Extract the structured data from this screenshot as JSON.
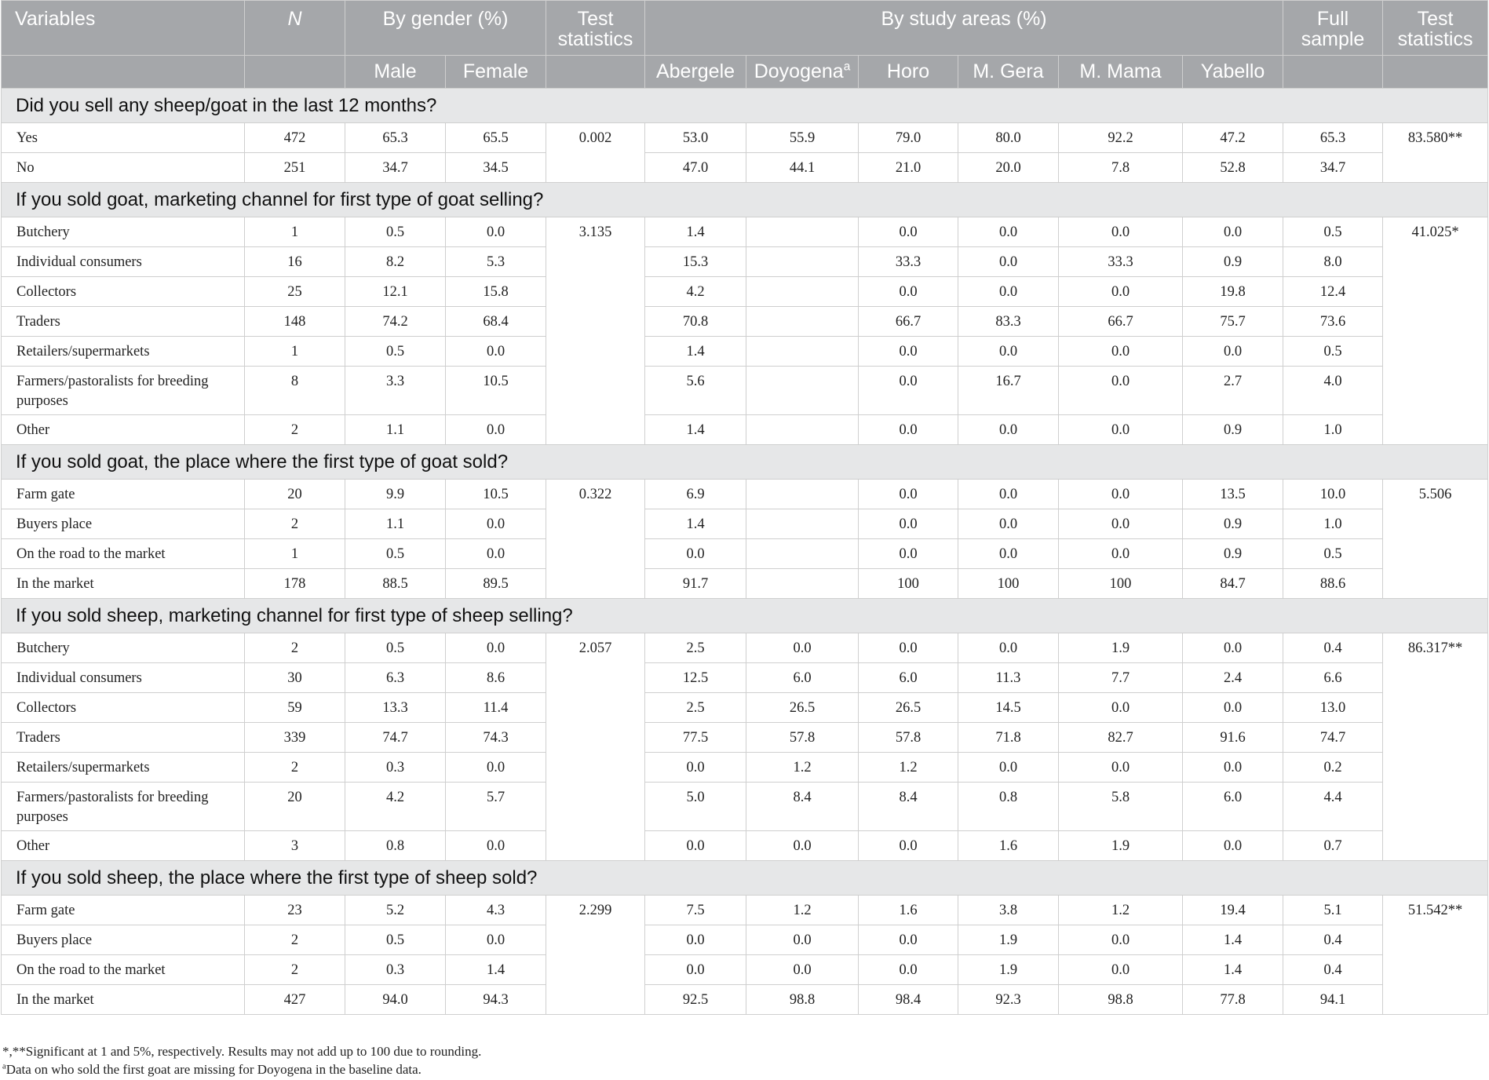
{
  "header": {
    "variables": "Variables",
    "n": "N",
    "by_gender": "By gender (%)",
    "test_statistics": "Test statistics",
    "by_study_areas": "By study areas (%)",
    "full_sample": "Full sample",
    "male": "Male",
    "female": "Female",
    "abergele": "Abergele",
    "doyogena": "Doyogena",
    "doyogena_note_mark": "a",
    "horo": "Horo",
    "m_gera": "M. Gera",
    "m_mama": "M. Mama",
    "yabello": "Yabello"
  },
  "sections": [
    {
      "title": "Did you sell any sheep/goat in the last 12 months?",
      "gender_test": "0.002",
      "area_test": "83.580**",
      "rows": [
        {
          "label": "Yes",
          "n": "472",
          "male": "65.3",
          "female": "65.5",
          "abergele": "53.0",
          "doyogena": "55.9",
          "horo": "79.0",
          "m_gera": "80.0",
          "m_mama": "92.2",
          "yabello": "47.2",
          "full": "65.3"
        },
        {
          "label": "No",
          "n": "251",
          "male": "34.7",
          "female": "34.5",
          "abergele": "47.0",
          "doyogena": "44.1",
          "horo": "21.0",
          "m_gera": "20.0",
          "m_mama": "7.8",
          "yabello": "52.8",
          "full": "34.7"
        }
      ]
    },
    {
      "title": "If you sold goat, marketing channel for first type of goat selling?",
      "gender_test": "3.135",
      "area_test": "41.025*",
      "rows": [
        {
          "label": "Butchery",
          "n": "1",
          "male": "0.5",
          "female": "0.0",
          "abergele": "1.4",
          "doyogena": "",
          "horo": "0.0",
          "m_gera": "0.0",
          "m_mama": "0.0",
          "yabello": "0.0",
          "full": "0.5"
        },
        {
          "label": "Individual consumers",
          "n": "16",
          "male": "8.2",
          "female": "5.3",
          "abergele": "15.3",
          "doyogena": "",
          "horo": "33.3",
          "m_gera": "0.0",
          "m_mama": "33.3",
          "yabello": "0.9",
          "full": "8.0"
        },
        {
          "label": "Collectors",
          "n": "25",
          "male": "12.1",
          "female": "15.8",
          "abergele": "4.2",
          "doyogena": "",
          "horo": "0.0",
          "m_gera": "0.0",
          "m_mama": "0.0",
          "yabello": "19.8",
          "full": "12.4"
        },
        {
          "label": "Traders",
          "n": "148",
          "male": "74.2",
          "female": "68.4",
          "abergele": "70.8",
          "doyogena": "",
          "horo": "66.7",
          "m_gera": "83.3",
          "m_mama": "66.7",
          "yabello": "75.7",
          "full": "73.6"
        },
        {
          "label": "Retailers/supermarkets",
          "n": "1",
          "male": "0.5",
          "female": "0.0",
          "abergele": "1.4",
          "doyogena": "",
          "horo": "0.0",
          "m_gera": "0.0",
          "m_mama": "0.0",
          "yabello": "0.0",
          "full": "0.5"
        },
        {
          "label": "Farmers/pastoralists for breeding purposes",
          "n": "8",
          "male": "3.3",
          "female": "10.5",
          "abergele": "5.6",
          "doyogena": "",
          "horo": "0.0",
          "m_gera": "16.7",
          "m_mama": "0.0",
          "yabello": "2.7",
          "full": "4.0"
        },
        {
          "label": "Other",
          "n": "2",
          "male": "1.1",
          "female": "0.0",
          "abergele": "1.4",
          "doyogena": "",
          "horo": "0.0",
          "m_gera": "0.0",
          "m_mama": "0.0",
          "yabello": "0.9",
          "full": "1.0"
        }
      ]
    },
    {
      "title": "If you sold goat, the place where the first type of goat sold?",
      "gender_test": "0.322",
      "area_test": "5.506",
      "rows": [
        {
          "label": "Farm gate",
          "n": "20",
          "male": "9.9",
          "female": "10.5",
          "abergele": "6.9",
          "doyogena": "",
          "horo": "0.0",
          "m_gera": "0.0",
          "m_mama": "0.0",
          "yabello": "13.5",
          "full": "10.0"
        },
        {
          "label": "Buyers place",
          "n": "2",
          "male": "1.1",
          "female": "0.0",
          "abergele": "1.4",
          "doyogena": "",
          "horo": "0.0",
          "m_gera": "0.0",
          "m_mama": "0.0",
          "yabello": "0.9",
          "full": "1.0"
        },
        {
          "label": "On the road to the market",
          "n": "1",
          "male": "0.5",
          "female": "0.0",
          "abergele": "0.0",
          "doyogena": "",
          "horo": "0.0",
          "m_gera": "0.0",
          "m_mama": "0.0",
          "yabello": "0.9",
          "full": "0.5"
        },
        {
          "label": "In the market",
          "n": "178",
          "male": "88.5",
          "female": "89.5",
          "abergele": "91.7",
          "doyogena": "",
          "horo": "100",
          "m_gera": "100",
          "m_mama": "100",
          "yabello": "84.7",
          "full": "88.6"
        }
      ]
    },
    {
      "title": "If you sold sheep, marketing channel for first type of sheep selling?",
      "gender_test": "2.057",
      "area_test": "86.317**",
      "rows": [
        {
          "label": "Butchery",
          "n": "2",
          "male": "0.5",
          "female": "0.0",
          "abergele": "2.5",
          "doyogena": "0.0",
          "horo": "0.0",
          "m_gera": "0.0",
          "m_mama": "1.9",
          "yabello": "0.0",
          "full": "0.4"
        },
        {
          "label": "Individual consumers",
          "n": "30",
          "male": "6.3",
          "female": "8.6",
          "abergele": "12.5",
          "doyogena": "6.0",
          "horo": "6.0",
          "m_gera": "11.3",
          "m_mama": "7.7",
          "yabello": "2.4",
          "full": "6.6"
        },
        {
          "label": "Collectors",
          "n": "59",
          "male": "13.3",
          "female": "11.4",
          "abergele": "2.5",
          "doyogena": "26.5",
          "horo": "26.5",
          "m_gera": "14.5",
          "m_mama": "0.0",
          "yabello": "0.0",
          "full": "13.0"
        },
        {
          "label": "Traders",
          "n": "339",
          "male": "74.7",
          "female": "74.3",
          "abergele": "77.5",
          "doyogena": "57.8",
          "horo": "57.8",
          "m_gera": "71.8",
          "m_mama": "82.7",
          "yabello": "91.6",
          "full": "74.7"
        },
        {
          "label": "Retailers/supermarkets",
          "n": "2",
          "male": "0.3",
          "female": "0.0",
          "abergele": "0.0",
          "doyogena": "1.2",
          "horo": "1.2",
          "m_gera": "0.0",
          "m_mama": "0.0",
          "yabello": "0.0",
          "full": "0.2"
        },
        {
          "label": "Farmers/pastoralists for breeding purposes",
          "n": "20",
          "male": "4.2",
          "female": "5.7",
          "abergele": "5.0",
          "doyogena": "8.4",
          "horo": "8.4",
          "m_gera": "0.8",
          "m_mama": "5.8",
          "yabello": "6.0",
          "full": "4.4"
        },
        {
          "label": "Other",
          "n": "3",
          "male": "0.8",
          "female": "0.0",
          "abergele": "0.0",
          "doyogena": "0.0",
          "horo": "0.0",
          "m_gera": "1.6",
          "m_mama": "1.9",
          "yabello": "0.0",
          "full": "0.7"
        }
      ]
    },
    {
      "title": "If you sold sheep, the place where the first type of sheep sold?",
      "gender_test": "2.299",
      "area_test": "51.542**",
      "rows": [
        {
          "label": "Farm gate",
          "n": "23",
          "male": "5.2",
          "female": "4.3",
          "abergele": "7.5",
          "doyogena": "1.2",
          "horo": "1.6",
          "m_gera": "3.8",
          "m_mama": "1.2",
          "yabello": "19.4",
          "full": "5.1"
        },
        {
          "label": "Buyers place",
          "n": "2",
          "male": "0.5",
          "female": "0.0",
          "abergele": "0.0",
          "doyogena": "0.0",
          "horo": "0.0",
          "m_gera": "1.9",
          "m_mama": "0.0",
          "yabello": "1.4",
          "full": "0.4"
        },
        {
          "label": "On the road to the market",
          "n": "2",
          "male": "0.3",
          "female": "1.4",
          "abergele": "0.0",
          "doyogena": "0.0",
          "horo": "0.0",
          "m_gera": "1.9",
          "m_mama": "0.0",
          "yabello": "1.4",
          "full": "0.4"
        },
        {
          "label": "In the market",
          "n": "427",
          "male": "94.0",
          "female": "94.3",
          "abergele": "92.5",
          "doyogena": "98.8",
          "horo": "98.4",
          "m_gera": "92.3",
          "m_mama": "98.8",
          "yabello": "77.8",
          "full": "94.1"
        }
      ]
    }
  ],
  "footnotes": {
    "note1": "*,**Significant at 1 and 5%, respectively. Results may not add up to 100 due to rounding.",
    "note2_mark": "a",
    "note2": "Data on who sold the first goat are missing for Doyogena in the baseline data."
  }
}
